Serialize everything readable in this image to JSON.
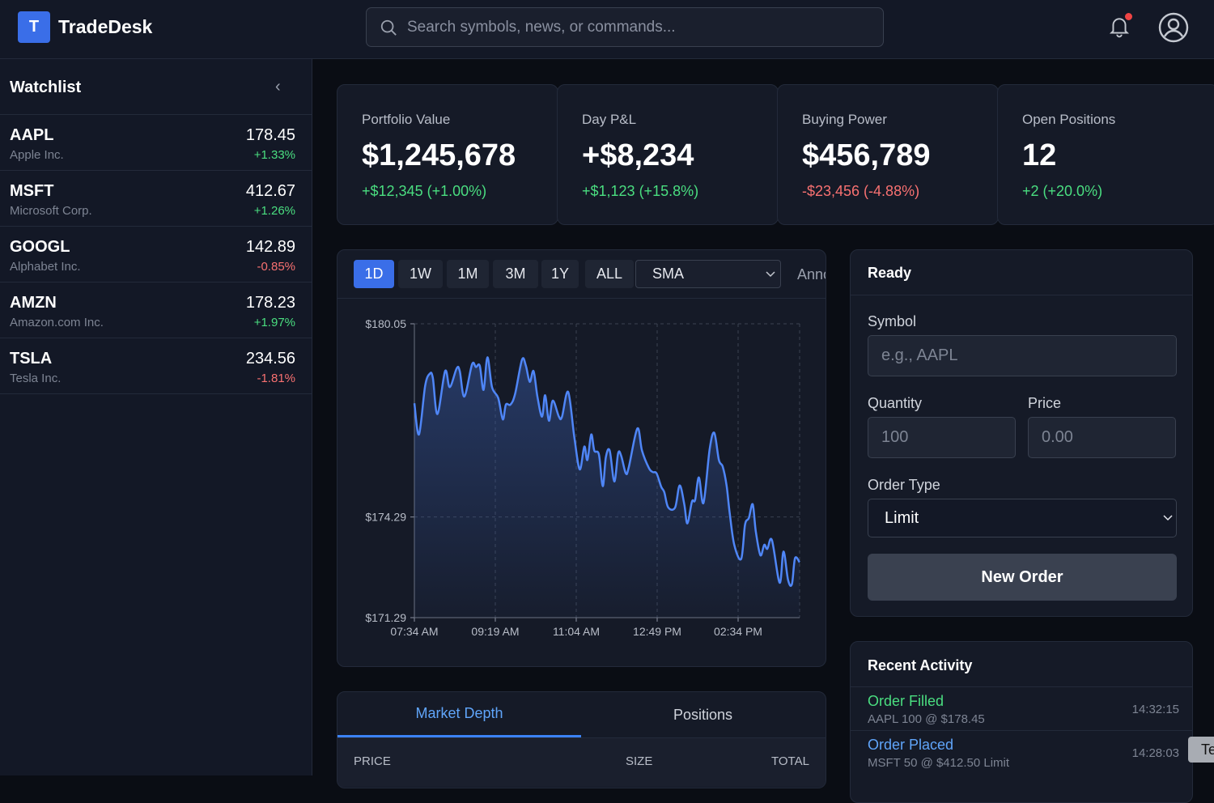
{
  "header": {
    "logo_letter": "T",
    "brand": "TradeDesk",
    "search_placeholder": "Search symbols, news, or commands...",
    "has_notification": true
  },
  "watchlist": {
    "title": "Watchlist",
    "items": [
      {
        "symbol": "AAPL",
        "name": "Apple Inc.",
        "price": "178.45",
        "change": "+1.33%",
        "dir": "up"
      },
      {
        "symbol": "MSFT",
        "name": "Microsoft Corp.",
        "price": "412.67",
        "change": "+1.26%",
        "dir": "up"
      },
      {
        "symbol": "GOOGL",
        "name": "Alphabet Inc.",
        "price": "142.89",
        "change": "-0.85%",
        "dir": "down"
      },
      {
        "symbol": "AMZN",
        "name": "Amazon.com Inc.",
        "price": "178.23",
        "change": "+1.97%",
        "dir": "up"
      },
      {
        "symbol": "TSLA",
        "name": "Tesla Inc.",
        "price": "234.56",
        "change": "-1.81%",
        "dir": "down"
      }
    ]
  },
  "stats": [
    {
      "label": "Portfolio Value",
      "value": "$1,245,678",
      "change": "+$12,345 (+1.00%)",
      "dir": "up"
    },
    {
      "label": "Day P&L",
      "value": "+$8,234",
      "change": "+$1,123 (+15.8%)",
      "dir": "up"
    },
    {
      "label": "Buying Power",
      "value": "$456,789",
      "change": "-$23,456 (-4.88%)",
      "dir": "down"
    },
    {
      "label": "Open Positions",
      "value": "12",
      "change": "+2 (+20.0%)",
      "dir": "up"
    }
  ],
  "chart_toolbar": {
    "ranges": [
      "1D",
      "1W",
      "1M",
      "3M",
      "1Y",
      "ALL"
    ],
    "active_range": "1D",
    "indicator": "SMA",
    "annotations_label": "Annotations"
  },
  "chart_data": {
    "type": "area",
    "series_color": "#4f86f7",
    "xlim": [
      "07:34",
      "15:55"
    ],
    "ylim": [
      171.29,
      180.05
    ],
    "x_ticks": [
      "07:34 AM",
      "09:19 AM",
      "11:04 AM",
      "12:49 PM",
      "02:34 PM"
    ],
    "y_ticks": [
      "$180.05",
      "$174.29",
      "$171.29"
    ],
    "y_tick_values": [
      180.05,
      174.29,
      171.29
    ],
    "grid": true,
    "x": [
      "07:34",
      "07:40",
      "07:48",
      "07:54",
      "07:58",
      "08:04",
      "08:14",
      "08:20",
      "08:29",
      "08:33",
      "08:39",
      "08:49",
      "08:54",
      "08:59",
      "09:04",
      "09:09",
      "09:15",
      "09:23",
      "09:29",
      "09:33",
      "09:39",
      "09:45",
      "09:54",
      "09:59",
      "10:04",
      "10:09",
      "10:14",
      "10:20",
      "10:24",
      "10:29",
      "10:34",
      "10:42",
      "10:46",
      "10:54",
      "11:02",
      "11:09",
      "11:15",
      "11:19",
      "11:24",
      "11:28",
      "11:34",
      "11:39",
      "11:43",
      "11:48",
      "11:54",
      "11:59",
      "12:03",
      "12:09",
      "12:13",
      "12:24",
      "12:30",
      "12:39",
      "12:44",
      "12:49",
      "12:55",
      "12:59",
      "13:04",
      "13:13",
      "13:19",
      "13:25",
      "13:29",
      "13:35",
      "13:39",
      "13:44",
      "13:50",
      "13:58",
      "14:04",
      "14:10",
      "14:15",
      "14:20",
      "14:24",
      "14:30",
      "14:39",
      "14:44",
      "14:49",
      "14:54",
      "14:58",
      "15:04",
      "15:09",
      "15:13",
      "15:19",
      "15:29",
      "15:34",
      "15:40",
      "15:45",
      "15:49",
      "15:55"
    ],
    "y": [
      177.68,
      176.75,
      178.2,
      178.56,
      178.44,
      177.36,
      178.64,
      178.16,
      178.72,
      178.64,
      177.88,
      178.84,
      178.76,
      178.8,
      178.08,
      179.05,
      178.16,
      177.84,
      177.2,
      177.64,
      177.64,
      177.96,
      178.98,
      178.8,
      178.32,
      178.64,
      177.88,
      177.28,
      177.92,
      177.16,
      177.76,
      177.28,
      177.28,
      178.02,
      176.67,
      175.71,
      176.39,
      175.99,
      176.75,
      176.27,
      176.15,
      175.21,
      176.07,
      176.27,
      175.35,
      176.19,
      176.11,
      175.59,
      175.79,
      176.93,
      176.27,
      175.75,
      175.63,
      175.59,
      175.19,
      175.03,
      174.58,
      174.57,
      175.23,
      174.67,
      174.1,
      174.75,
      174.79,
      175.47,
      174.71,
      176.31,
      176.8,
      175.99,
      175.79,
      175.23,
      174.42,
      173.46,
      173.04,
      174.06,
      174.26,
      174.67,
      173.86,
      173.15,
      173.46,
      173.34,
      173.6,
      172.33,
      173.26,
      172.41,
      172.29,
      173.06,
      172.94
    ]
  },
  "order_form": {
    "status": "Ready",
    "symbol_label": "Symbol",
    "symbol_placeholder": "e.g., AAPL",
    "quantity_label": "Quantity",
    "quantity_placeholder": "100",
    "price_label": "Price",
    "price_placeholder": "0.00",
    "order_type_label": "Order Type",
    "order_type": "Limit",
    "submit_label": "New Order"
  },
  "activity": {
    "title": "Recent Activity",
    "items": [
      {
        "title": "Order Filled",
        "detail": "AAPL 100 @ $178.45",
        "time": "14:32:15",
        "color": "#4ade80"
      },
      {
        "title": "Order Placed",
        "detail": "MSFT 50 @ $412.50 Limit",
        "time": "14:28:03",
        "color": "#60a5fa"
      }
    ]
  },
  "bottom_tabs": {
    "tabs": [
      "Market Depth",
      "Positions"
    ],
    "active": "Market Depth",
    "columns": [
      "PRICE",
      "SIZE",
      "TOTAL"
    ]
  },
  "tooltip": "Te"
}
